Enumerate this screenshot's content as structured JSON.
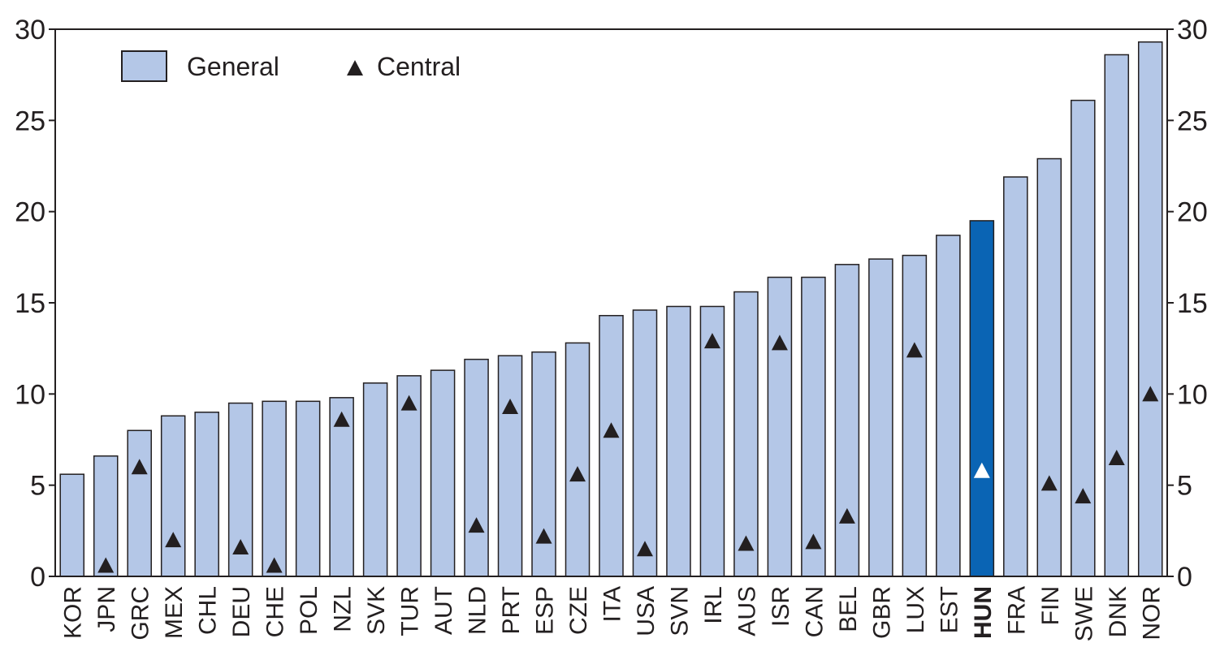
{
  "chart_data": {
    "type": "bar",
    "title": "",
    "xlabel": "",
    "ylabel": "",
    "ylim": [
      0,
      30
    ],
    "yticks": [
      0,
      5,
      10,
      15,
      20,
      25,
      30
    ],
    "ytick_labels": [
      "0",
      "5",
      "10",
      "15",
      "20",
      "25",
      "30"
    ],
    "grid": false,
    "legend_position": "top-left",
    "highlight_category": "HUN",
    "categories": [
      "KOR",
      "JPN",
      "GRC",
      "MEX",
      "CHL",
      "DEU",
      "CHE",
      "POL",
      "NZL",
      "SVK",
      "TUR",
      "AUT",
      "NLD",
      "PRT",
      "ESP",
      "CZE",
      "ITA",
      "USA",
      "SVN",
      "IRL",
      "AUS",
      "ISR",
      "CAN",
      "BEL",
      "GBR",
      "LUX",
      "EST",
      "HUN",
      "FRA",
      "FIN",
      "SWE",
      "DNK",
      "NOR"
    ],
    "series": [
      {
        "name": "General",
        "mark": "bar",
        "color": "#b4c7e7",
        "highlight_color": "#0a64b4",
        "values": [
          5.6,
          6.6,
          8.0,
          8.8,
          9.0,
          9.5,
          9.6,
          9.6,
          9.8,
          10.6,
          11.0,
          11.3,
          11.9,
          12.1,
          12.3,
          12.8,
          14.3,
          14.6,
          14.8,
          14.8,
          15.6,
          16.4,
          16.4,
          17.1,
          17.4,
          17.6,
          18.7,
          19.5,
          21.9,
          22.9,
          26.1,
          28.6,
          29.3
        ]
      },
      {
        "name": "Central",
        "mark": "triangle",
        "color": "#231f20",
        "highlight_color": "#ffffff",
        "values": [
          null,
          0.6,
          6.0,
          2.0,
          null,
          1.6,
          0.6,
          null,
          8.6,
          null,
          9.5,
          null,
          2.8,
          9.3,
          2.2,
          5.6,
          8.0,
          1.5,
          null,
          12.9,
          1.8,
          12.8,
          1.9,
          3.3,
          null,
          12.4,
          null,
          5.8,
          null,
          5.1,
          4.4,
          6.5,
          10.0
        ]
      }
    ]
  }
}
